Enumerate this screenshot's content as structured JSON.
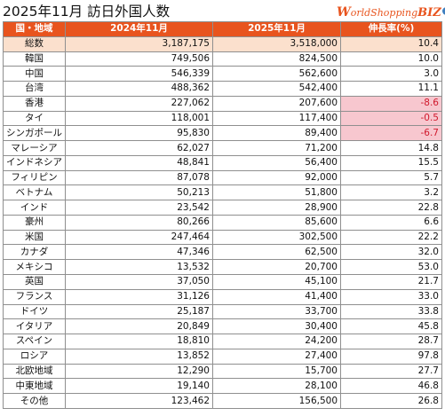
{
  "title": "2025年11月 訪日外国人数",
  "logo": {
    "w": "W",
    "text": "orldShopping",
    "biz": "BIZ",
    "globe_color": "#3f7fbf",
    "brand_color": "#e8541e"
  },
  "table": {
    "headers": [
      "国・地域",
      "2024年11月",
      "2025年11月",
      "伸長率(%)"
    ],
    "rows": [
      {
        "label": "総数",
        "v2024": "3,187,175",
        "v2025": "3,518,000",
        "growth": "10.4"
      },
      {
        "label": "韓国",
        "v2024": "749,506",
        "v2025": "824,500",
        "growth": "10.0"
      },
      {
        "label": "中国",
        "v2024": "546,339",
        "v2025": "562,600",
        "growth": "3.0"
      },
      {
        "label": "台湾",
        "v2024": "488,362",
        "v2025": "542,400",
        "growth": "11.1"
      },
      {
        "label": "香港",
        "v2024": "227,062",
        "v2025": "207,600",
        "growth": "-8.6"
      },
      {
        "label": "タイ",
        "v2024": "118,001",
        "v2025": "117,400",
        "growth": "-0.5"
      },
      {
        "label": "シンガポール",
        "v2024": "95,830",
        "v2025": "89,400",
        "growth": "-6.7"
      },
      {
        "label": "マレーシア",
        "v2024": "62,027",
        "v2025": "71,200",
        "growth": "14.8"
      },
      {
        "label": "インドネシア",
        "v2024": "48,841",
        "v2025": "56,400",
        "growth": "15.5"
      },
      {
        "label": "フィリピン",
        "v2024": "87,078",
        "v2025": "92,000",
        "growth": "5.7"
      },
      {
        "label": "ベトナム",
        "v2024": "50,213",
        "v2025": "51,800",
        "growth": "3.2"
      },
      {
        "label": "インド",
        "v2024": "23,542",
        "v2025": "28,900",
        "growth": "22.8"
      },
      {
        "label": "豪州",
        "v2024": "80,266",
        "v2025": "85,600",
        "growth": "6.6"
      },
      {
        "label": "米国",
        "v2024": "247,464",
        "v2025": "302,500",
        "growth": "22.2"
      },
      {
        "label": "カナダ",
        "v2024": "47,346",
        "v2025": "62,500",
        "growth": "32.0"
      },
      {
        "label": "メキシコ",
        "v2024": "13,532",
        "v2025": "20,700",
        "growth": "53.0"
      },
      {
        "label": "英国",
        "v2024": "37,050",
        "v2025": "45,100",
        "growth": "21.7"
      },
      {
        "label": "フランス",
        "v2024": "31,126",
        "v2025": "41,400",
        "growth": "33.0"
      },
      {
        "label": "ドイツ",
        "v2024": "25,187",
        "v2025": "33,700",
        "growth": "33.8"
      },
      {
        "label": "イタリア",
        "v2024": "20,849",
        "v2025": "30,400",
        "growth": "45.8"
      },
      {
        "label": "スペイン",
        "v2024": "18,810",
        "v2025": "24,200",
        "growth": "28.7"
      },
      {
        "label": "ロシア",
        "v2024": "13,852",
        "v2025": "27,400",
        "growth": "97.8"
      },
      {
        "label": "北欧地域",
        "v2024": "12,290",
        "v2025": "15,700",
        "growth": "27.7"
      },
      {
        "label": "中東地域",
        "v2024": "19,140",
        "v2025": "28,100",
        "growth": "46.8"
      },
      {
        "label": "その他",
        "v2024": "123,462",
        "v2025": "156,500",
        "growth": "26.8"
      }
    ],
    "colors": {
      "header_bg": "#e8541e",
      "total_bg": "#fbe0cd",
      "negative_bg": "#f7c7cf",
      "negative_text": "#d0182c"
    }
  }
}
